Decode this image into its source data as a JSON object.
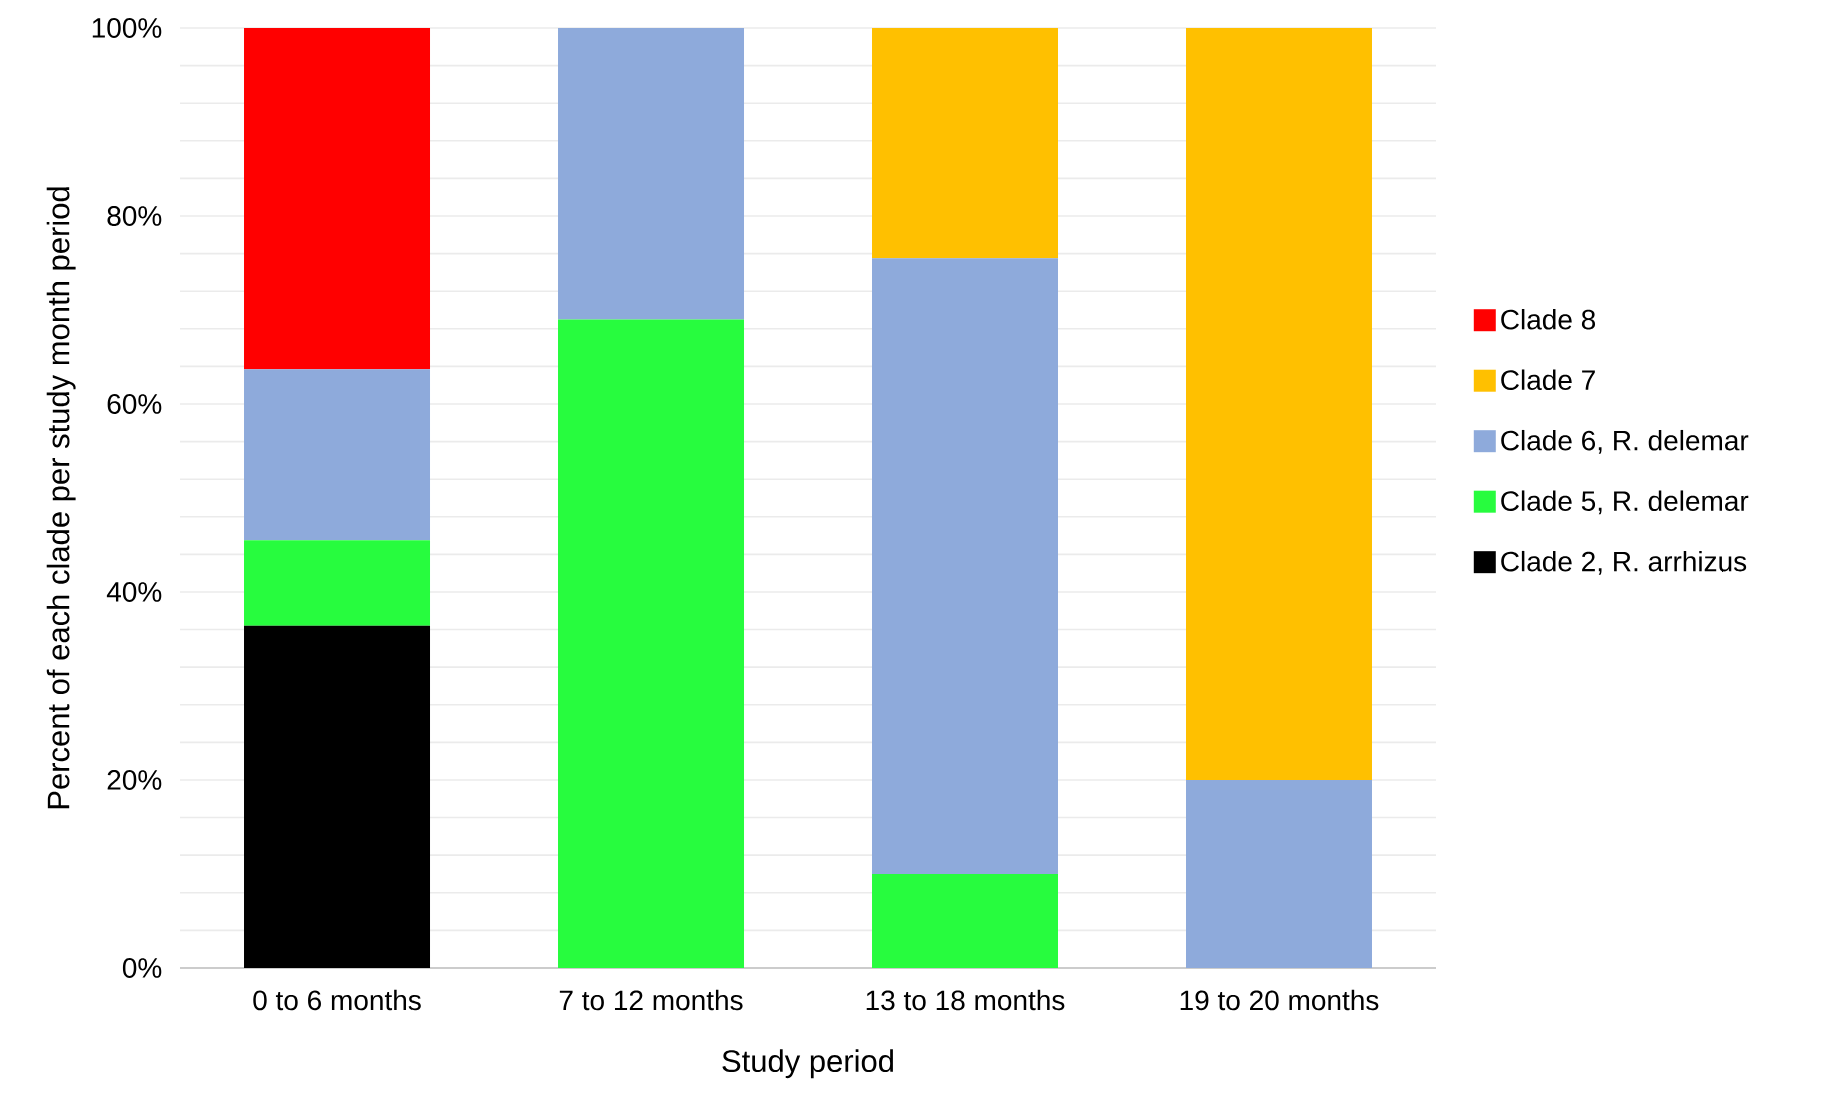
{
  "chart_data": {
    "type": "bar",
    "stacked": true,
    "xlabel": "Study period",
    "ylabel": "Percent of each clade per study month period",
    "categories": [
      "0 to 6 months",
      "7 to 12 months",
      "13 to 18 months",
      "19 to 20 months"
    ],
    "series": [
      {
        "name": "Clade 2, R. arrhizus",
        "color": "#000000",
        "values": [
          36.4,
          0,
          0,
          0
        ]
      },
      {
        "name": "Clade 5, R. delemar",
        "color": "#27fc3e",
        "values": [
          9.1,
          69,
          10,
          0
        ]
      },
      {
        "name": "Clade 6, R. delemar",
        "color": "#8eaadb",
        "values": [
          18.2,
          31,
          65.5,
          20
        ]
      },
      {
        "name": "Clade 7",
        "color": "#ffc000",
        "values": [
          0,
          0,
          24.5,
          80
        ]
      },
      {
        "name": "Clade 8",
        "color": "#ff0000",
        "values": [
          36.3,
          0,
          0,
          0
        ]
      }
    ],
    "ylim": [
      0,
      100
    ],
    "yticks": [
      {
        "value": 0,
        "label": "0%"
      },
      {
        "value": 4,
        "label": null
      },
      {
        "value": 8,
        "label": null
      },
      {
        "value": 12,
        "label": null
      },
      {
        "value": 16,
        "label": null
      },
      {
        "value": 20,
        "label": "20%"
      },
      {
        "value": 24,
        "label": null
      },
      {
        "value": 28,
        "label": null
      },
      {
        "value": 32,
        "label": null
      },
      {
        "value": 36,
        "label": null
      },
      {
        "value": 40,
        "label": "40%"
      },
      {
        "value": 44,
        "label": null
      },
      {
        "value": 48,
        "label": null
      },
      {
        "value": 52,
        "label": null
      },
      {
        "value": 56,
        "label": null
      },
      {
        "value": 60,
        "label": "60%"
      },
      {
        "value": 64,
        "label": null
      },
      {
        "value": 68,
        "label": null
      },
      {
        "value": 72,
        "label": null
      },
      {
        "value": 76,
        "label": null
      },
      {
        "value": 80,
        "label": "80%"
      },
      {
        "value": 84,
        "label": null
      },
      {
        "value": 88,
        "label": null
      },
      {
        "value": 92,
        "label": null
      },
      {
        "value": 96,
        "label": null
      },
      {
        "value": 100,
        "label": "100%"
      }
    ],
    "grid": "y",
    "legend": "right"
  }
}
